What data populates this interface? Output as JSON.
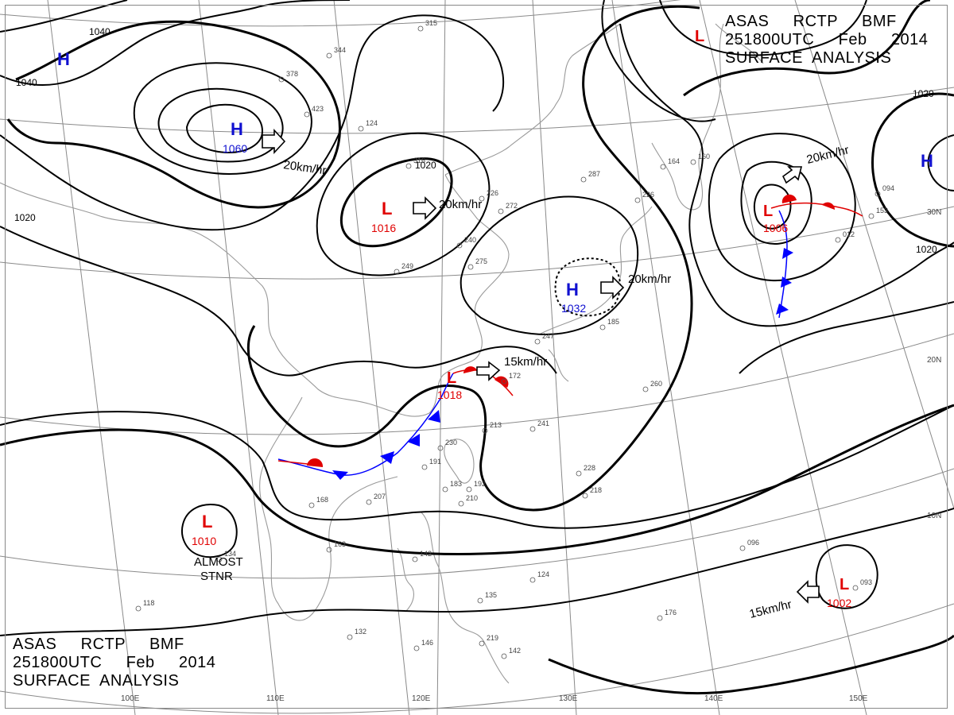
{
  "header_top": {
    "line1": "ASAS     RCTP     BMF",
    "line2": "251800UTC     Feb     2014",
    "line3": "SURFACE  ANALYSIS"
  },
  "header_bottom": {
    "line1": "ASAS     RCTP     BMF",
    "line2": "251800UTC     Feb     2014",
    "line3": "SURFACE  ANALYSIS"
  },
  "colors": {
    "isobar": "#000000",
    "grid": "#8a8a8a",
    "coast": "#9a9a9a",
    "high": "#1010d0",
    "low": "#e00000",
    "warm_front": "#e00000",
    "cold_front": "#0000ff"
  },
  "pressure_systems": [
    {
      "type": "H",
      "value": "",
      "id": "high-nw"
    },
    {
      "type": "H",
      "value": "1060",
      "id": "high-mongolia"
    },
    {
      "type": "L",
      "value": "1016",
      "id": "low-north-china"
    },
    {
      "type": "H",
      "value": "1032",
      "id": "high-east-china-sea"
    },
    {
      "type": "L",
      "value": "1018",
      "id": "low-taiwan"
    },
    {
      "type": "L",
      "value": "1006",
      "id": "low-pacific"
    },
    {
      "type": "H",
      "value": "",
      "id": "high-far-east"
    },
    {
      "type": "L",
      "value": "",
      "id": "low-north"
    },
    {
      "type": "L",
      "value": "1010",
      "id": "low-indochina"
    },
    {
      "type": "L",
      "value": "1002",
      "id": "low-south-pacific"
    }
  ],
  "motion_labels": [
    {
      "id": "motion-mongolia",
      "text": "20km/hr"
    },
    {
      "id": "motion-north-china",
      "text": "20km/hr"
    },
    {
      "id": "motion-ecs",
      "text": "20km/hr"
    },
    {
      "id": "motion-taiwan",
      "text": "15km/hr"
    },
    {
      "id": "motion-pacific",
      "text": "20km/hr"
    },
    {
      "id": "motion-south-pacific",
      "text": "15km/hr"
    }
  ],
  "isobar_labels": [
    "1040",
    "1040",
    "1020",
    "1020",
    "1020",
    "1020"
  ],
  "almost_stationary": [
    "ALMOST",
    "STNR"
  ],
  "lon_labels": [
    "100E",
    "110E",
    "120E",
    "130E",
    "140E",
    "150E"
  ],
  "lat_labels": [
    "30N",
    "20N",
    "10N"
  ],
  "station_samples": [
    "315",
    "344",
    "378",
    "423",
    "124",
    "316",
    "226",
    "240",
    "249",
    "275",
    "272",
    "287",
    "164",
    "160",
    "226",
    "185",
    "260",
    "247",
    "172",
    "241",
    "213",
    "230",
    "191",
    "183",
    "192",
    "228",
    "207",
    "168",
    "163",
    "134",
    "118",
    "132",
    "146",
    "135",
    "142",
    "124",
    "176",
    "093",
    "096",
    "012",
    "094",
    "153",
    "210",
    "218",
    "219",
    "142"
  ]
}
